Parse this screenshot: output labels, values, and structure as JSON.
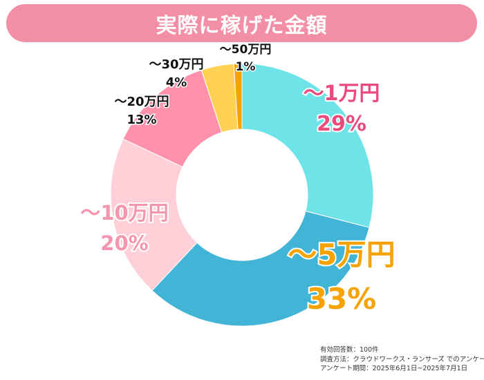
{
  "chart_data": {
    "type": "pie",
    "title": "実際に稼げた金額",
    "slices": [
      {
        "label": "〜1万円",
        "percent_label": "29%",
        "value": 29,
        "color": "#6ee4e9",
        "text_color": "#ea4b7d"
      },
      {
        "label": "〜5万円",
        "percent_label": "33%",
        "value": 33,
        "color": "#42b5d6",
        "text_color": "#f6a200"
      },
      {
        "label": "〜10万円",
        "percent_label": "20%",
        "value": 20,
        "color": "#ffd0d7",
        "text_color": "#f596b0"
      },
      {
        "label": "〜20万円",
        "percent_label": "13%",
        "value": 13,
        "color": "#ff91aa",
        "text_color": "#111111"
      },
      {
        "label": "〜30万円",
        "percent_label": "4%",
        "value": 4,
        "color": "#ffd154",
        "text_color": "#111111"
      },
      {
        "label": "〜50万円",
        "percent_label": "1%",
        "value": 1,
        "color": "#f6a200",
        "text_color": "#111111"
      }
    ]
  },
  "notes": {
    "responses": "有効回答数：100件",
    "method": "調査方法：クラウドワークス・ランサーズ でのアンケート",
    "period": "アンケート期間：2025年6月1日~2025年7月1日"
  }
}
